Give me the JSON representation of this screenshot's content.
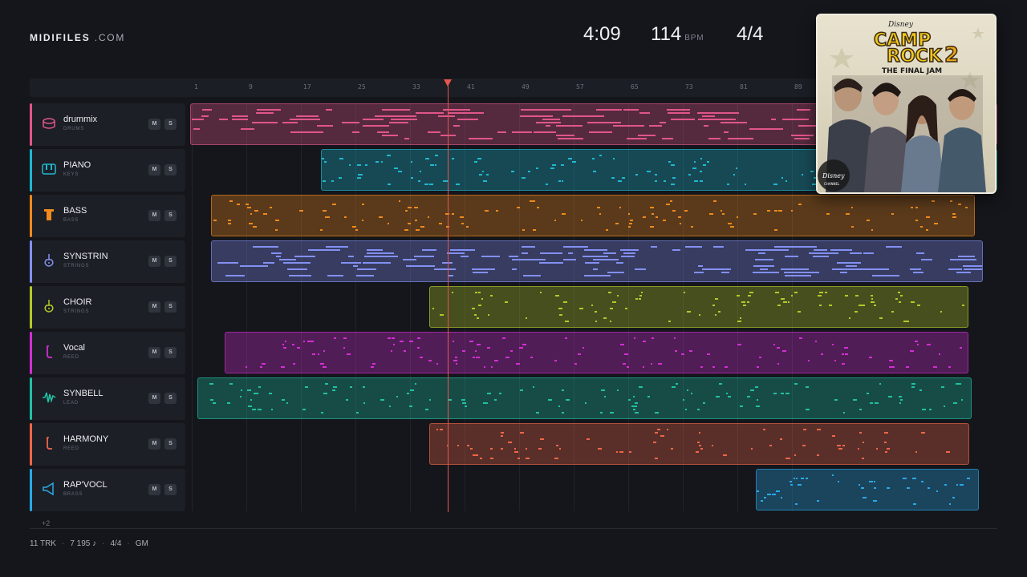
{
  "brand": {
    "name": "MIDIFILES",
    "suffix": ".COM"
  },
  "stats": {
    "duration": "4:09",
    "tempo": "114",
    "tempo_unit": "BPM",
    "time_signature": "4/4"
  },
  "ruler": {
    "bars": [
      "1",
      "9",
      "17",
      "25",
      "33",
      "41",
      "49",
      "57",
      "65",
      "73",
      "81",
      "89"
    ]
  },
  "playhead": {
    "bar_position": 37
  },
  "tracks": [
    {
      "name": "drummix",
      "type": "DRUMS",
      "icon": "drum-icon",
      "color": "#e0568a",
      "mute": "M",
      "solo": "S"
    },
    {
      "name": "PIANO",
      "type": "KEYS",
      "icon": "piano-keys-icon",
      "color": "#1fb8cf",
      "mute": "M",
      "solo": "S"
    },
    {
      "name": "BASS",
      "type": "BASS",
      "icon": "amp-icon",
      "color": "#ef8a1d",
      "mute": "M",
      "solo": "S"
    },
    {
      "name": "SYNSTRIN",
      "type": "STRINGS",
      "icon": "violin-icon",
      "color": "#8390f2",
      "mute": "M",
      "solo": "S"
    },
    {
      "name": "CHOIR",
      "type": "STRINGS",
      "icon": "violin-icon",
      "color": "#b5c928",
      "mute": "M",
      "solo": "S"
    },
    {
      "name": "Vocal",
      "type": "REED",
      "icon": "reed-icon",
      "color": "#d22fd3",
      "mute": "M",
      "solo": "S"
    },
    {
      "name": "SYNBELL",
      "type": "LEAD",
      "icon": "waveform-icon",
      "color": "#20c1a3",
      "mute": "M",
      "solo": "S"
    },
    {
      "name": "HARMONY",
      "type": "REED",
      "icon": "reed-icon",
      "color": "#ef6649",
      "mute": "M",
      "solo": "S"
    },
    {
      "name": "RAP'VOCL",
      "type": "BRASS",
      "icon": "horn-icon",
      "color": "#2aa9e8",
      "mute": "M",
      "solo": "S"
    }
  ],
  "more_tracks": "+2",
  "footer": {
    "tracks": "11 TRK",
    "notes": "7 195 ♪",
    "signature": "4/4",
    "standard": "GM"
  },
  "album_cover": {
    "label_top": "Disney",
    "title_line1": "CAMP",
    "title_line2": "ROCK",
    "title_number": "2",
    "subtitle": "THE FINAL JAM",
    "label_bottom": "Disney",
    "label_bottom_sub": "CHANNEL"
  }
}
